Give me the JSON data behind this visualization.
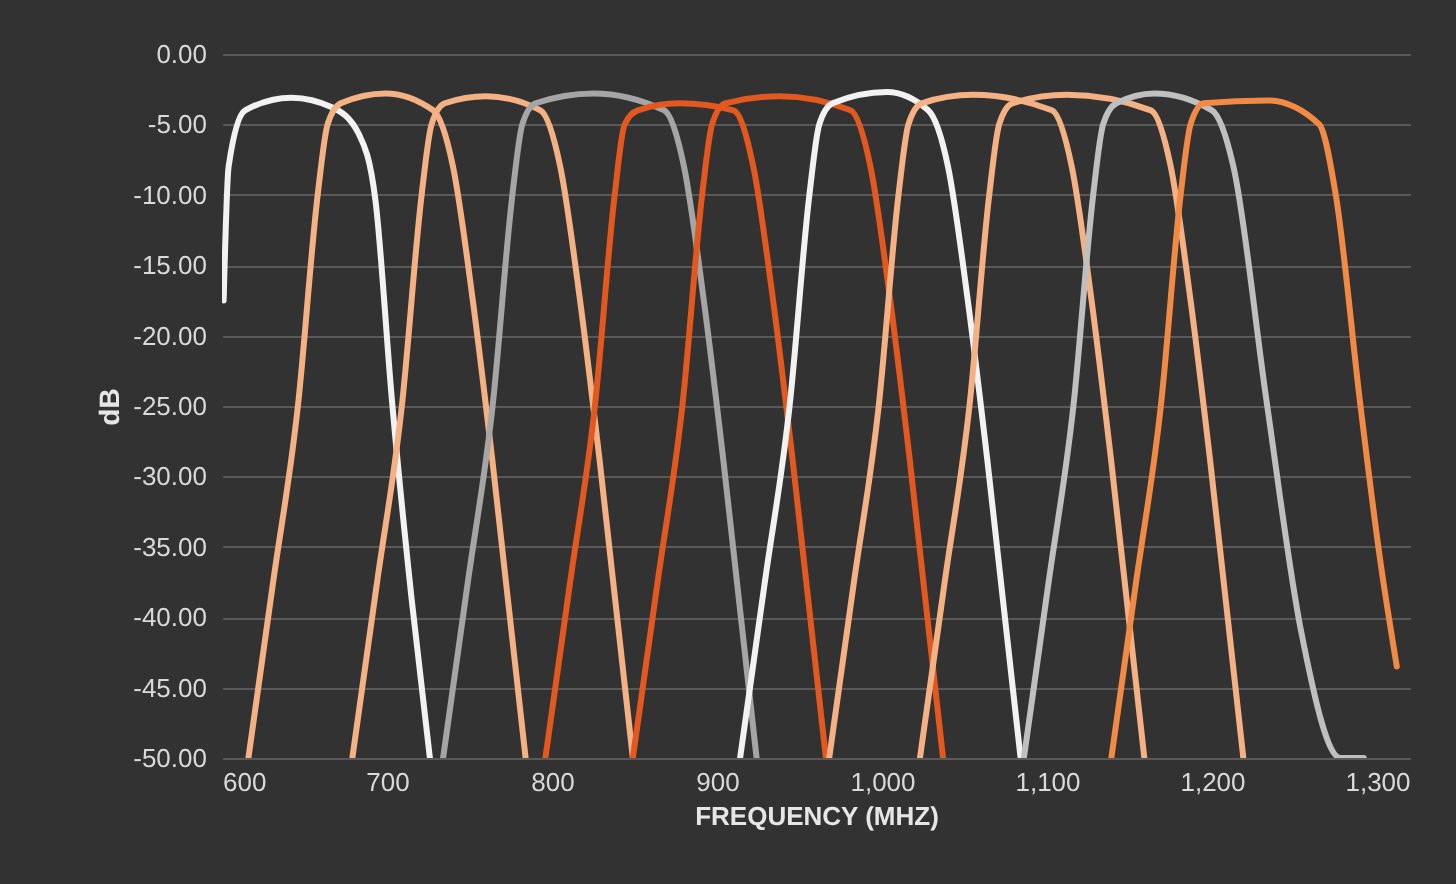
{
  "chart_data": {
    "type": "line",
    "xlabel": "FREQUENCY (MHZ)",
    "ylabel": "dB",
    "xlim": [
      600,
      1320
    ],
    "ylim": [
      -50,
      0
    ],
    "xticks": [
      600,
      700,
      800,
      900,
      {
        "value": 1000,
        "label": "1,000"
      },
      {
        "value": 1100,
        "label": "1,100"
      },
      {
        "value": 1200,
        "label": "1,200"
      },
      {
        "value": 1300,
        "label": "1,300"
      }
    ],
    "yticks": [
      {
        "value": 0,
        "label": "0.00"
      },
      {
        "value": -5,
        "label": "-5.00"
      },
      {
        "value": -10,
        "label": "-10.00"
      },
      {
        "value": -15,
        "label": "-15.00"
      },
      {
        "value": -20,
        "label": "-20.00"
      },
      {
        "value": -25,
        "label": "-25.00"
      },
      {
        "value": -30,
        "label": "-30.00"
      },
      {
        "value": -35,
        "label": "-35.00"
      },
      {
        "value": -40,
        "label": "-40.00"
      },
      {
        "value": -45,
        "label": "-45.00"
      },
      {
        "value": -50,
        "label": "-50.00"
      }
    ],
    "grid": "y",
    "legend": false,
    "series": [
      {
        "color": "#f2f2f2",
        "x": [
          601,
          604,
          614,
          642,
          667,
          683,
          693,
          703,
          715,
          726
        ],
        "values": [
          -17.5,
          -8,
          -4,
          -3.1,
          -3.8,
          -5.7,
          -10.4,
          -24.6,
          -38.8,
          -50
        ]
      },
      {
        "color": "#f4b183",
        "x": [
          616,
          631,
          646,
          658,
          664,
          672,
          699,
          728,
          740,
          752,
          764,
          784
        ],
        "values": [
          -50,
          -37.5,
          -25,
          -10,
          -5,
          -3.5,
          -2.8,
          -4,
          -8,
          -17.5,
          -29,
          -50
        ]
      },
      {
        "color": "#f4b183",
        "x": [
          679,
          694,
          709,
          721,
          727,
          735,
          760,
          793,
          805,
          817,
          829,
          849
        ],
        "values": [
          -50,
          -37.5,
          -25,
          -10,
          -5,
          -3.5,
          -3,
          -4,
          -8,
          -17.5,
          -29,
          -50
        ]
      },
      {
        "color": "#a5a5a5",
        "x": [
          734,
          749,
          764,
          776,
          782,
          790,
          825,
          868,
          880,
          892,
          904,
          924
        ],
        "values": [
          -50,
          -37.5,
          -25,
          -10,
          -5,
          -3.5,
          -2.8,
          -4,
          -8,
          -17.5,
          -29,
          -50
        ]
      },
      {
        "color": "#e2581e",
        "x": [
          796,
          811,
          826,
          838,
          844,
          852,
          877,
          910,
          922,
          934,
          946,
          966
        ],
        "values": [
          -50,
          -37.5,
          -25,
          -10,
          -5,
          -4,
          -3.5,
          -4,
          -8,
          -17.5,
          -29,
          -50
        ]
      },
      {
        "color": "#e2581e",
        "x": [
          849,
          864,
          879,
          891,
          897,
          905,
          938,
          981,
          993,
          1005,
          1017,
          1037
        ],
        "values": [
          -50,
          -37.5,
          -25,
          -10,
          -5,
          -3.5,
          -3,
          -4,
          -8,
          -17.5,
          -29,
          -50
        ]
      },
      {
        "color": "#f2f2f2",
        "x": [
          914,
          929,
          944,
          956,
          962,
          970,
          1003,
          1028,
          1040,
          1052,
          1064,
          1084
        ],
        "values": [
          -50,
          -37.5,
          -25,
          -10,
          -5,
          -3.5,
          -2.7,
          -4,
          -8,
          -17.5,
          -29,
          -50
        ]
      },
      {
        "color": "#f4b183",
        "x": [
          968,
          983,
          998,
          1010,
          1016,
          1024,
          1055,
          1103,
          1115,
          1127,
          1139,
          1159
        ],
        "values": [
          -50,
          -37.5,
          -25,
          -10,
          -5,
          -3.5,
          -2.9,
          -4,
          -8,
          -17.5,
          -29,
          -50
        ]
      },
      {
        "color": "#f4b183",
        "x": [
          1023,
          1038,
          1053,
          1065,
          1071,
          1079,
          1112,
          1163,
          1175,
          1187,
          1199,
          1219
        ],
        "values": [
          -50,
          -37.5,
          -25,
          -10,
          -5,
          -3.5,
          -2.9,
          -4,
          -8,
          -17.5,
          -29,
          -50
        ]
      },
      {
        "color": "#bfbfbf",
        "x": [
          1086,
          1101,
          1116,
          1128,
          1134,
          1142,
          1165,
          1200,
          1213,
          1233,
          1254,
          1278,
          1292
        ],
        "values": [
          -50,
          -37.5,
          -25,
          -10,
          -5,
          -3.5,
          -2.8,
          -4,
          -8,
          -24.6,
          -41,
          -50,
          -50
        ]
      },
      {
        "color": "#f08a45",
        "x": [
          1139,
          1154,
          1169,
          1181,
          1187,
          1195,
          1234,
          1265,
          1275,
          1290,
          1302,
          1312
        ],
        "values": [
          -50,
          -37.5,
          -25,
          -10,
          -5,
          -3.5,
          -3.3,
          -5,
          -10,
          -25,
          -36,
          -43.5
        ]
      }
    ]
  }
}
